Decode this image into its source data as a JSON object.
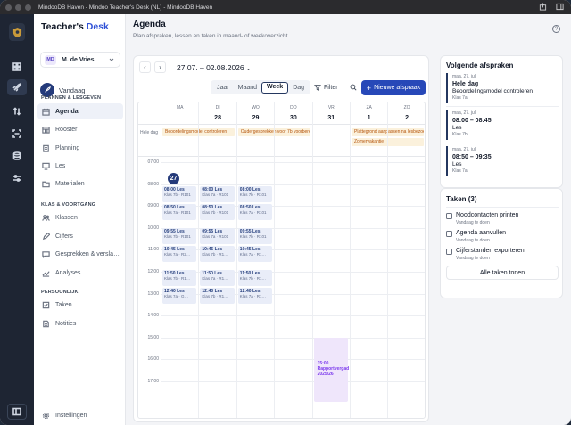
{
  "window": {
    "title": "MindooDB Haven - Mindoo Teacher's Desk (NL) - MindooDB Haven"
  },
  "brand": {
    "part1": "Teacher's",
    "part2": "Desk"
  },
  "user": {
    "initials": "MD",
    "name": "M. de Vries"
  },
  "sidebar": {
    "today_label": "Vandaag",
    "sections": [
      {
        "title": "PLANNEN & LESGEVEN",
        "items": [
          "Agenda",
          "Rooster",
          "Planning",
          "Les",
          "Materialen"
        ]
      },
      {
        "title": "KLAS & VOORTGANG",
        "items": [
          "Klassen",
          "Cijfers",
          "Gesprekken & versla…",
          "Analyses"
        ]
      },
      {
        "title": "PERSOONLIJK",
        "items": [
          "Taken",
          "Notities"
        ]
      }
    ],
    "settings_label": "Instellingen",
    "active_item": "Agenda"
  },
  "page": {
    "title": "Agenda",
    "subtitle": "Plan afspraken, lessen en taken in maand- of weekoverzicht.",
    "help": "?"
  },
  "calendar": {
    "range": "27.07. – 02.08.2026",
    "views": [
      "Jaar",
      "Maand",
      "Week",
      "Dag"
    ],
    "active_view": "Week",
    "filter_label": "Filter",
    "new_label": "Nieuwe afspraak",
    "days": [
      {
        "name": "MA",
        "date": "27",
        "today": true
      },
      {
        "name": "DI",
        "date": "28"
      },
      {
        "name": "WO",
        "date": "29"
      },
      {
        "name": "DO",
        "date": "30"
      },
      {
        "name": "VR",
        "date": "31"
      },
      {
        "name": "ZA",
        "date": "1"
      },
      {
        "name": "ZO",
        "date": "2"
      }
    ],
    "allday_label": "Hele dag",
    "allday_events": [
      {
        "text": "Beoordelingsmodel controleren",
        "day": 0,
        "span": 2,
        "row": 0
      },
      {
        "text": "Oudergesprekken voor 7b voorbereiden",
        "day": 2,
        "span": 2,
        "row": 0
      },
      {
        "text": "Plattegrond aanpassen na lesbezoek",
        "day": 5,
        "span": 2,
        "row": 0
      },
      {
        "text": "Zomervakantie",
        "day": 5,
        "span": 2,
        "row": 1
      }
    ],
    "hours": [
      "07:00",
      "08:00",
      "09:00",
      "10:00",
      "11:00",
      "12:00",
      "13:00",
      "14:00",
      "15:00",
      "16:00",
      "17:00"
    ],
    "lessons": [
      {
        "day": 0,
        "start": "08:00",
        "title": "08:00 Les",
        "sub": "Klas 7b · R101"
      },
      {
        "day": 0,
        "start": "08:50",
        "title": "08:50 Les",
        "sub": "Klas 7a · R101"
      },
      {
        "day": 0,
        "start": "09:55",
        "title": "09:55 Les",
        "sub": "Klas 7b · R101"
      },
      {
        "day": 0,
        "start": "10:45",
        "title": "10:45 Les",
        "sub": "Klas 7a · R2…"
      },
      {
        "day": 0,
        "start": "11:50",
        "title": "11:50 Les",
        "sub": "Klas 7b · R1…"
      },
      {
        "day": 0,
        "start": "12:40",
        "title": "12:40 Les",
        "sub": "Klas 7a · G…"
      },
      {
        "day": 1,
        "start": "08:00",
        "title": "08:00 Les",
        "sub": "Klas 7a · R101"
      },
      {
        "day": 1,
        "start": "08:50",
        "title": "08:50 Les",
        "sub": "Klas 7b · R101"
      },
      {
        "day": 1,
        "start": "09:55",
        "title": "09:55 Les",
        "sub": "Klas 7a · R101"
      },
      {
        "day": 1,
        "start": "10:45",
        "title": "10:45 Les",
        "sub": "Klas 7b · R1…"
      },
      {
        "day": 1,
        "start": "11:50",
        "title": "11:50 Les",
        "sub": "Klas 7a · R1…"
      },
      {
        "day": 1,
        "start": "12:40",
        "title": "12:40 Les",
        "sub": "Klas 7b · R1…"
      },
      {
        "day": 2,
        "start": "08:00",
        "title": "08:00 Les",
        "sub": "Klas 7b · R101"
      },
      {
        "day": 2,
        "start": "08:50",
        "title": "08:50 Les",
        "sub": "Klas 7a · R101"
      },
      {
        "day": 2,
        "start": "09:55",
        "title": "09:55 Les",
        "sub": "Klas 7b · R101"
      },
      {
        "day": 2,
        "start": "10:45",
        "title": "10:45 Les",
        "sub": "Klas 7a · R1…"
      },
      {
        "day": 2,
        "start": "11:50",
        "title": "11:50 Les",
        "sub": "Klas 7b · R1…"
      },
      {
        "day": 2,
        "start": "12:40",
        "title": "12:40 Les",
        "sub": "Klas 7a · R1…"
      }
    ],
    "special": {
      "day": 4,
      "start": "15:00",
      "time": "15:00",
      "title": "Rapportvergad",
      "sub": "2025/26"
    }
  },
  "upcoming": {
    "title": "Volgende afspraken",
    "items": [
      {
        "date": "maa, 27. jul.",
        "time": "Hele dag",
        "subject": "Beoordelingsmodel controleren",
        "klas": "Klas 7a"
      },
      {
        "date": "maa, 27. jul.",
        "time": "08:00 – 08:45",
        "subject": "Les",
        "klas": "Klas 7b"
      },
      {
        "date": "maa, 27. jul.",
        "time": "08:50 – 09:35",
        "subject": "Les",
        "klas": "Klas 7a"
      }
    ]
  },
  "tasks": {
    "title": "Taken (3)",
    "items": [
      {
        "label": "Noodcontacten printen",
        "due": "Vandaag te doen"
      },
      {
        "label": "Agenda aanvullen",
        "due": "Vandaag te doen"
      },
      {
        "label": "Cijferstanden exporteren",
        "due": "Vandaag te doen"
      }
    ],
    "all_label": "Alle taken tonen"
  },
  "colors": {
    "accent": "#2748b8",
    "nav_dark": "#1e2533",
    "lesson_bg": "#e9edf8",
    "allday_bg": "#fbf1dc",
    "report_bg": "#efe6fb"
  }
}
